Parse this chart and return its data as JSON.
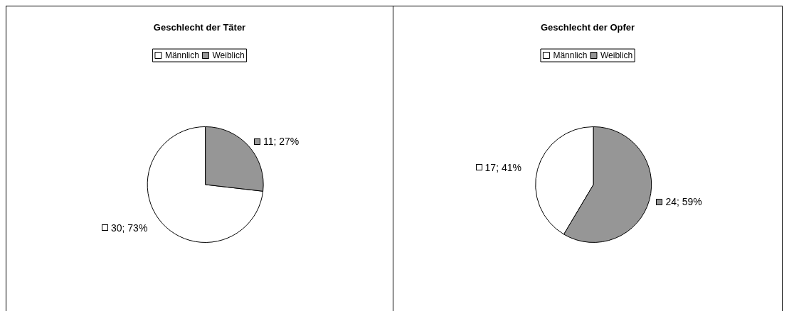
{
  "chart_data": [
    {
      "type": "pie",
      "title": "Geschlecht der Täter",
      "categories": [
        "Männlich",
        "Weiblich"
      ],
      "values": [
        30,
        11
      ],
      "colors": [
        "#ffffff",
        "#969696"
      ],
      "value_labels": [
        "30; 73%",
        "11; 27%"
      ],
      "legend": "top"
    },
    {
      "type": "pie",
      "title": "Geschlecht der Opfer",
      "categories": [
        "Männlich",
        "Weiblich"
      ],
      "values": [
        17,
        24
      ],
      "colors": [
        "#ffffff",
        "#969696"
      ],
      "value_labels": [
        "17; 41%",
        "24; 59%"
      ],
      "legend": "top"
    }
  ]
}
